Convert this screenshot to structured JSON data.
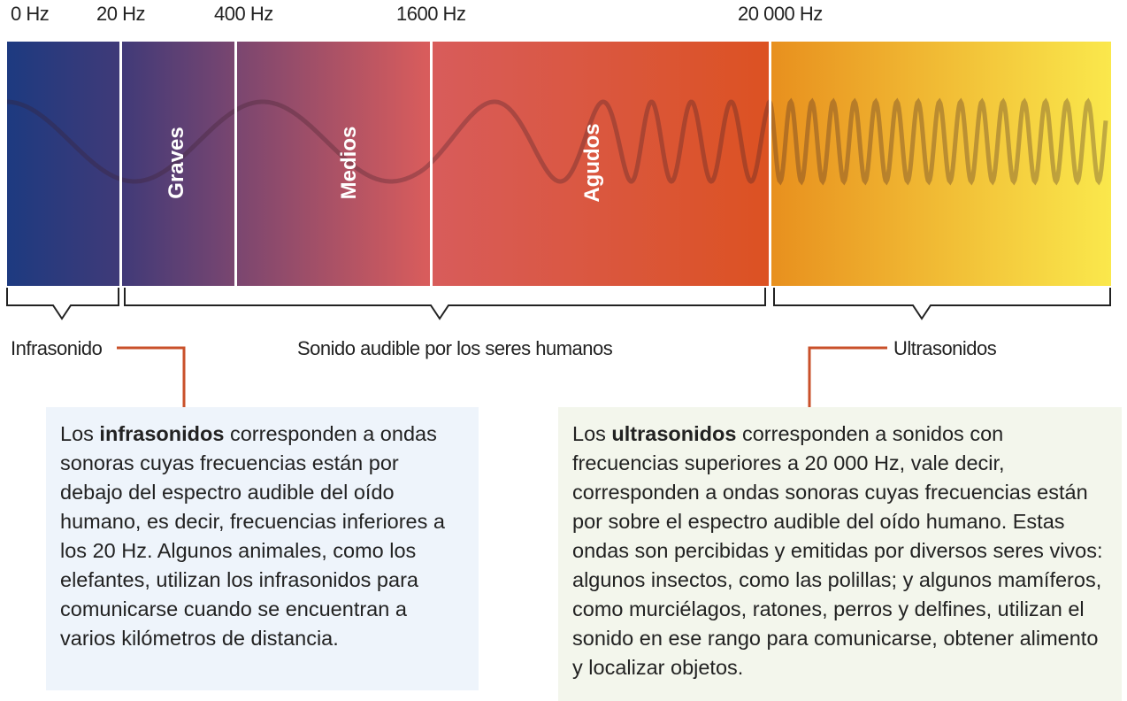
{
  "frequencies": [
    "0 Hz",
    "20 Hz",
    "400 Hz",
    "1600 Hz",
    "20 000 Hz"
  ],
  "bands": [
    "Graves",
    "Medios",
    "Agudos"
  ],
  "groups": [
    "Infrasonido",
    "Sonido audible por los seres humanos",
    "Ultrasonidos"
  ],
  "boxes": [
    {
      "before": "Los ",
      "bold": "infrasonidos",
      "after": " corresponden a ondas sonoras cuyas frecuencias están por debajo del espectro audible del oído humano, es decir, frecuencias inferiores a los 20 Hz. Algunos animales, como los elefantes, utilizan los infrasonidos para comunicarse cuando se encuentran a varios kilómetros de distancia."
    },
    {
      "before": "Los ",
      "bold": "ultrasonidos",
      "after": " corresponden a sonidos con frecuencias superiores a 20 000 Hz, vale decir, corresponden a ondas sonoras cuyas frecuencias están por sobre el espectro audible del oído humano. Estas ondas son percibidas y emitidas por diversos seres vivos: algunos insectos, como las polillas; y algunos mamíferos, como murciélagos, ratones, perros y delfines, utilizan el sonido en ese rango para comunicarse, obtener alimento y localizar objetos."
    }
  ]
}
